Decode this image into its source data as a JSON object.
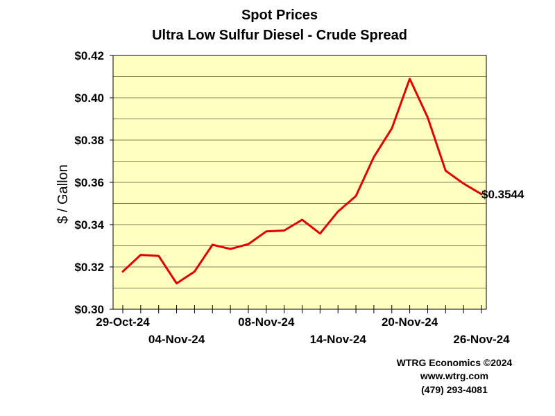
{
  "chart_data": {
    "type": "line",
    "title": "Spot Prices",
    "subtitle": "Ultra Low Sulfur Diesel - Crude Spread",
    "xlabel": "",
    "ylabel": "$ / Gallon",
    "ylim": [
      0.3,
      0.42
    ],
    "y_ticks": [
      "$0.30",
      "$0.32",
      "$0.34",
      "$0.36",
      "$0.38",
      "$0.40",
      "$0.42"
    ],
    "y_tick_values": [
      0.3,
      0.32,
      0.34,
      0.36,
      0.38,
      0.4,
      0.42
    ],
    "x_tick_labels": [
      {
        "index": 0,
        "label": "29-Oct-24",
        "row": 1
      },
      {
        "index": 3,
        "label": "04-Nov-24",
        "row": 2
      },
      {
        "index": 8,
        "label": "08-Nov-24",
        "row": 1
      },
      {
        "index": 12,
        "label": "14-Nov-24",
        "row": 2
      },
      {
        "index": 16,
        "label": "20-Nov-24",
        "row": 1
      },
      {
        "index": 20,
        "label": "26-Nov-24",
        "row": 2
      }
    ],
    "grid": true,
    "background_color": "#ffffc0",
    "series": [
      {
        "color": "#e00000",
        "values": [
          0.3178,
          0.3257,
          0.3252,
          0.3122,
          0.3178,
          0.3305,
          0.3285,
          0.3308,
          0.3368,
          0.3372,
          0.3423,
          0.3358,
          0.3462,
          0.3535,
          0.372,
          0.3855,
          0.409,
          0.3907,
          0.3655,
          0.3594,
          0.3544
        ]
      }
    ],
    "end_label": "$0.3544"
  },
  "credits": [
    "WTRG Economics ©2024",
    "www.wtrg.com",
    "(479) 293-4081"
  ]
}
